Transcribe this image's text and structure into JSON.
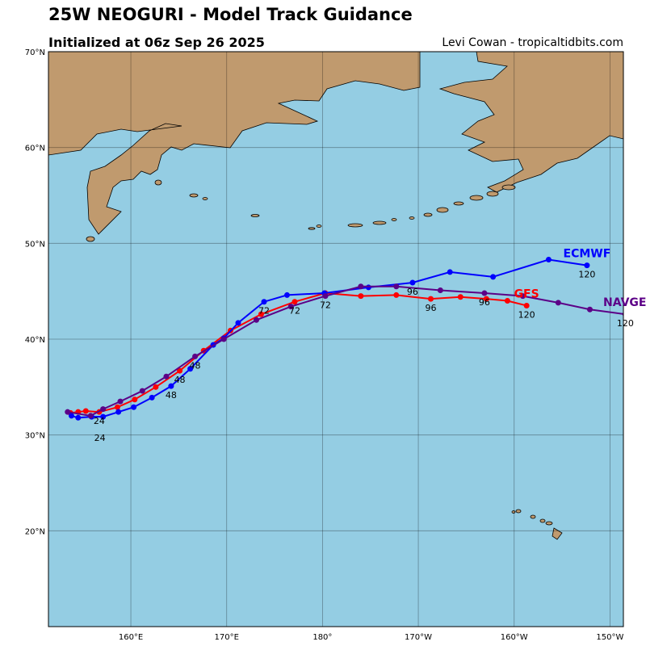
{
  "header": {
    "title": "25W NEOGURI - Model Track Guidance",
    "subtitle": "Initialized at 06z Sep 26 2025",
    "credit": "Levi Cowan - tropicaltidbits.com"
  },
  "map": {
    "lon_range": [
      151.4,
      211.4
    ],
    "lat_range": [
      10,
      70
    ],
    "ocean_color": "#94cde3",
    "land_color": "#c09a6e",
    "lon_ticks": [
      {
        "lon": 160,
        "label": "160°E"
      },
      {
        "lon": 170,
        "label": "170°E"
      },
      {
        "lon": 180,
        "label": "180°"
      },
      {
        "lon": 190,
        "label": "170°W"
      },
      {
        "lon": 200,
        "label": "160°W"
      },
      {
        "lon": 210,
        "label": "150°W"
      }
    ],
    "lat_ticks": [
      {
        "lat": 70,
        "label": "70°N"
      },
      {
        "lat": 60,
        "label": "60°N"
      },
      {
        "lat": 50,
        "label": "50°N"
      },
      {
        "lat": 40,
        "label": "40°N"
      },
      {
        "lat": 30,
        "label": "30°N"
      },
      {
        "lat": 20,
        "label": "20°N"
      }
    ]
  },
  "tracks": [
    {
      "name": "GFS",
      "color": "#ff0000",
      "points": [
        [
          153.7,
          32.3
        ],
        [
          154.5,
          32.4
        ],
        [
          155.3,
          32.5
        ],
        [
          156.7,
          32.4
        ],
        [
          158.6,
          32.9
        ],
        [
          160.4,
          33.7
        ],
        [
          162.6,
          35.0
        ],
        [
          165.1,
          36.7
        ],
        [
          167.6,
          38.8
        ],
        [
          170.4,
          40.9
        ],
        [
          173.6,
          42.6
        ],
        [
          177.1,
          43.9
        ],
        [
          180.3,
          44.8
        ],
        [
          184.0,
          44.5
        ],
        [
          187.7,
          44.6
        ],
        [
          191.3,
          44.2
        ],
        [
          194.4,
          44.4
        ],
        [
          197.1,
          44.2
        ],
        [
          199.3,
          44.0
        ],
        [
          201.3,
          43.5
        ]
      ],
      "hour_labels": [
        {
          "text": "24",
          "index": 3
        },
        {
          "text": "48",
          "index": 7
        },
        {
          "text": "72",
          "index": 11
        },
        {
          "text": "96",
          "index": 15
        },
        {
          "text": "120",
          "index": 19
        }
      ]
    },
    {
      "name": "ECMWF",
      "color": "#0000ff",
      "points": [
        [
          153.8,
          32.0
        ],
        [
          154.5,
          31.8
        ],
        [
          155.9,
          31.9
        ],
        [
          157.1,
          31.9
        ],
        [
          158.7,
          32.4
        ],
        [
          160.3,
          32.9
        ],
        [
          162.2,
          33.9
        ],
        [
          164.2,
          35.1
        ],
        [
          166.2,
          36.9
        ],
        [
          168.6,
          39.4
        ],
        [
          169.7,
          40.1
        ],
        [
          171.2,
          41.7
        ],
        [
          173.9,
          43.9
        ],
        [
          176.3,
          44.6
        ],
        [
          180.2,
          44.8
        ],
        [
          184.8,
          45.4
        ],
        [
          189.4,
          45.9
        ],
        [
          193.3,
          47.0
        ],
        [
          197.8,
          46.5
        ],
        [
          203.6,
          48.3
        ],
        [
          207.6,
          47.7
        ]
      ],
      "hour_labels": [
        {
          "text": "24",
          "index": 3
        },
        {
          "text": "48",
          "index": 7
        },
        {
          "text": "72",
          "index": 12
        },
        {
          "text": "96",
          "index": 16
        },
        {
          "text": "120",
          "index": 20
        }
      ]
    },
    {
      "name": "NAVGEM",
      "color": "#5c0087",
      "points": [
        [
          153.4,
          32.4
        ],
        [
          155.8,
          32.0
        ],
        [
          157.1,
          32.7
        ],
        [
          158.9,
          33.5
        ],
        [
          161.2,
          34.6
        ],
        [
          163.7,
          36.1
        ],
        [
          166.7,
          38.2
        ],
        [
          169.7,
          40.0
        ],
        [
          173.1,
          42.0
        ],
        [
          176.7,
          43.4
        ],
        [
          180.3,
          44.5
        ],
        [
          184.0,
          45.5
        ],
        [
          187.7,
          45.5
        ],
        [
          192.3,
          45.1
        ],
        [
          196.9,
          44.8
        ],
        [
          200.9,
          44.5
        ],
        [
          204.6,
          43.8
        ],
        [
          207.9,
          43.1
        ],
        [
          211.6,
          42.6
        ]
      ],
      "hour_labels": [
        {
          "text": "48",
          "index": 6
        },
        {
          "text": "72",
          "index": 10
        },
        {
          "text": "96",
          "index": 14
        },
        {
          "text": "120",
          "index": 18
        }
      ]
    }
  ]
}
